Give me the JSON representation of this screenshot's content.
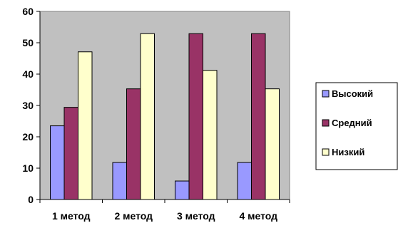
{
  "chart_data": {
    "type": "bar",
    "title": "",
    "xlabel": "",
    "ylabel": "",
    "categories": [
      "1 метод",
      "2 метод",
      "3 метод",
      "4 метод"
    ],
    "ylim": [
      0,
      60
    ],
    "yticks": [
      0,
      10,
      20,
      30,
      40,
      50,
      60
    ],
    "grid": false,
    "legend": "right",
    "series": [
      {
        "name": "Высокий",
        "values": [
          23.5,
          11.8,
          5.9,
          11.8
        ],
        "color": "#9999FF"
      },
      {
        "name": "Средний",
        "values": [
          29.4,
          35.3,
          52.9,
          52.9
        ],
        "color": "#993366"
      },
      {
        "name": "Низкий",
        "values": [
          47.1,
          52.9,
          41.2,
          35.3
        ],
        "color": "#FFFFCC"
      }
    ],
    "plot_background": "#C0C0C0"
  }
}
